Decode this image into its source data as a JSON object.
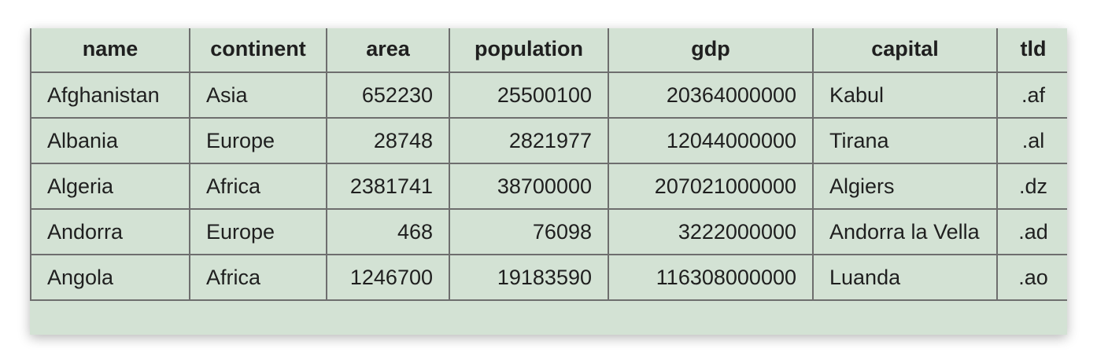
{
  "table": {
    "headers": [
      "name",
      "continent",
      "area",
      "population",
      "gdp",
      "capital",
      "tld"
    ],
    "rows": [
      [
        "Afghanistan",
        "Asia",
        "652230",
        "25500100",
        "20364000000",
        "Kabul",
        ".af"
      ],
      [
        "Albania",
        "Europe",
        "28748",
        "2821977",
        "12044000000",
        "Tirana",
        ".al"
      ],
      [
        "Algeria",
        "Africa",
        "2381741",
        "38700000",
        "207021000000",
        "Algiers",
        ".dz"
      ],
      [
        "Andorra",
        "Europe",
        "468",
        "76098",
        "3222000000",
        "Andorra la Vella",
        ".ad"
      ],
      [
        "Angola",
        "Africa",
        "1246700",
        "19183590",
        "116308000000",
        "Luanda",
        ".ao"
      ]
    ]
  }
}
